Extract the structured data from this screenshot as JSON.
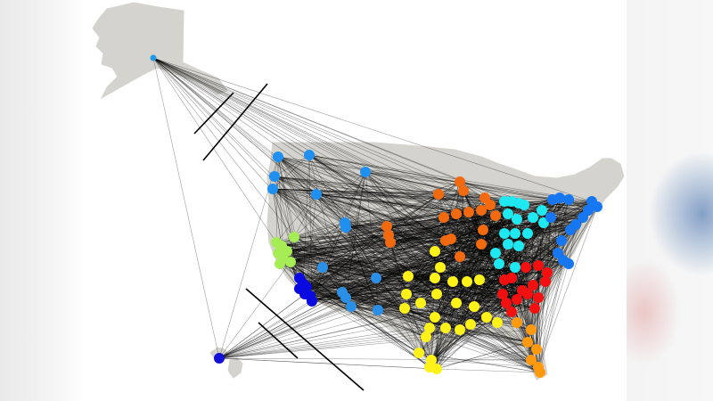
{
  "map": {
    "land_color": "#d5d3cd",
    "edge_color": "#000000",
    "node_colors": {
      "c_ak": "#1e9ae8",
      "c_pnw": "#1f8ff0",
      "c_ca": "#a6ec55",
      "c_la": "#0a0ae0",
      "c_sw": "#2b8fe6",
      "c_midw": "#f26a10",
      "c_central": "#fff21a",
      "c_south": "#fff21a",
      "c_glakes": "#1fe8f0",
      "c_ne": "#1777f0",
      "c_se": "#f31010",
      "c_fl": "#ff9a10",
      "c_hi": "#1010d8"
    }
  }
}
